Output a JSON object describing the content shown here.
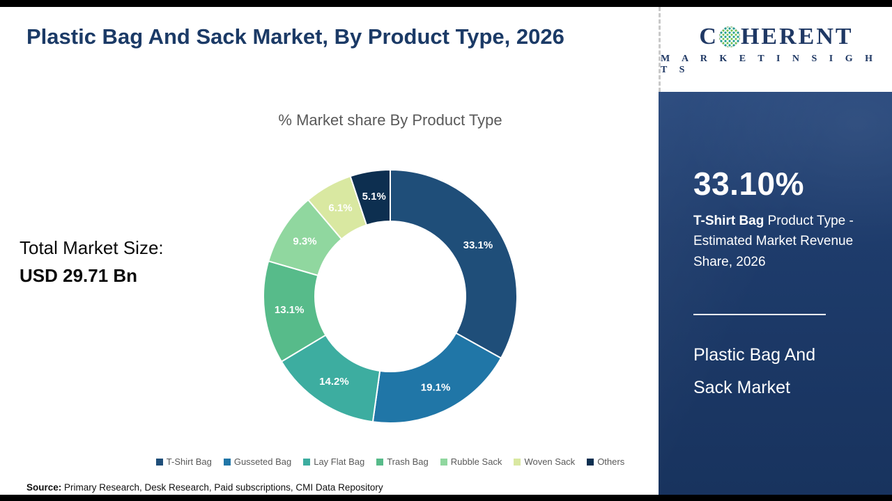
{
  "header": {
    "title": "Plastic Bag And Sack Market, By Product Type, 2026"
  },
  "chart": {
    "subtitle": "% Market share By Product Type"
  },
  "market_size": {
    "label": "Total Market Size:",
    "value": "USD 29.71 Bn"
  },
  "chart_data": {
    "type": "pie",
    "donut": true,
    "title": "% Market share By Product Type",
    "categories": [
      "T-Shirt Bag",
      "Gusseted Bag",
      "Lay Flat Bag",
      "Trash Bag",
      "Rubble Sack",
      "Woven Sack",
      "Others"
    ],
    "values": [
      33.1,
      19.1,
      14.2,
      13.1,
      9.3,
      6.1,
      5.1
    ],
    "labels": [
      "33.1%",
      "19.1%",
      "14.2%",
      "13.1%",
      "9.3%",
      "6.1%",
      "5.1%"
    ],
    "colors": [
      "#1f4e79",
      "#2076a7",
      "#3dada0",
      "#57bb8a",
      "#90d79f",
      "#d9e8a1",
      "#0d2f50"
    ],
    "legend_position": "bottom",
    "label_color": "#ffffff",
    "start_angle_deg": -90,
    "direction": "clockwise"
  },
  "source": {
    "label": "Source:",
    "text": " Primary Research, Desk Research, Paid subscriptions, CMI Data Repository"
  },
  "sidebar": {
    "logo": {
      "brand_prefix": "C",
      "brand_suffix": "HERENT",
      "brand_sub": "M A R K E T   I N S I G H T S"
    },
    "highlight_value": "33.10%",
    "highlight_bold": "T-Shirt Bag",
    "highlight_rest": " Product Type - Estimated Market Revenue Share, 2026",
    "market_name_line1": "Plastic Bag And",
    "market_name_line2": "Sack Market",
    "accent_color": "#1e3c6c"
  }
}
